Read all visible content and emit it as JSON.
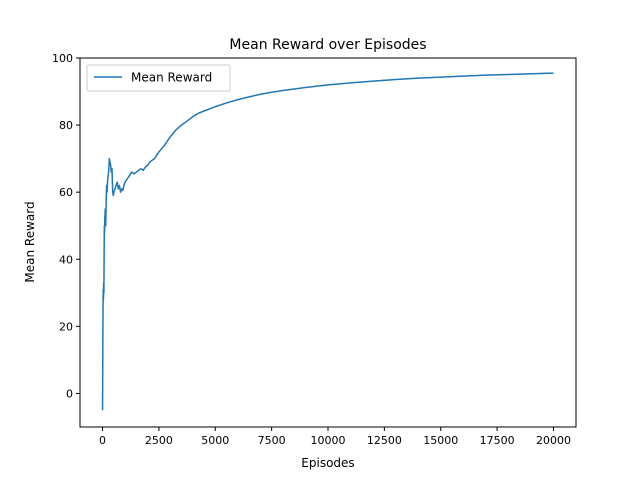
{
  "chart_data": {
    "type": "line",
    "title": "Mean Reward over Episodes",
    "xlabel": "Episodes",
    "ylabel": "Mean Reward",
    "xlim": [
      -1000,
      21000
    ],
    "ylim": [
      -10,
      100
    ],
    "x_ticks": [
      0,
      2500,
      5000,
      7500,
      10000,
      12500,
      15000,
      17500,
      20000
    ],
    "y_ticks": [
      0,
      20,
      40,
      60,
      80,
      100
    ],
    "grid": false,
    "legend_position": "top-left",
    "line_color": "#1f77b4",
    "series": [
      {
        "name": "Mean Reward",
        "x": [
          0,
          10,
          20,
          30,
          40,
          50,
          60,
          70,
          80,
          90,
          100,
          120,
          140,
          160,
          180,
          200,
          220,
          250,
          280,
          300,
          330,
          360,
          390,
          420,
          450,
          480,
          500,
          550,
          600,
          650,
          700,
          750,
          800,
          850,
          900,
          950,
          1000,
          1100,
          1200,
          1300,
          1400,
          1500,
          1600,
          1700,
          1800,
          1900,
          2000,
          2100,
          2200,
          2300,
          2400,
          2500,
          2750,
          3000,
          3250,
          3500,
          3750,
          4000,
          4250,
          4500,
          5000,
          5500,
          6000,
          6500,
          7000,
          7500,
          8000,
          9000,
          10000,
          11000,
          12000,
          13000,
          14000,
          15000,
          16000,
          17000,
          18000,
          19000,
          20000
        ],
        "y": [
          -5,
          10,
          25,
          31,
          28,
          33,
          30,
          42,
          50,
          48,
          52,
          55,
          50,
          57,
          62,
          60,
          63,
          65,
          67,
          70,
          69,
          68,
          66,
          67,
          60,
          59,
          60,
          61,
          62,
          63,
          61,
          62,
          60,
          61,
          60.5,
          62,
          63,
          64,
          65,
          66,
          65.5,
          66,
          66.5,
          67,
          66.5,
          67.5,
          68,
          69,
          69.5,
          70,
          71,
          72,
          74,
          76.5,
          78.5,
          80,
          81.2,
          82.5,
          83.5,
          84.2,
          85.5,
          86.6,
          87.6,
          88.4,
          89.2,
          89.8,
          90.3,
          91.2,
          92,
          92.6,
          93.1,
          93.6,
          94,
          94.3,
          94.6,
          94.9,
          95.1,
          95.3,
          95.5
        ]
      }
    ]
  }
}
